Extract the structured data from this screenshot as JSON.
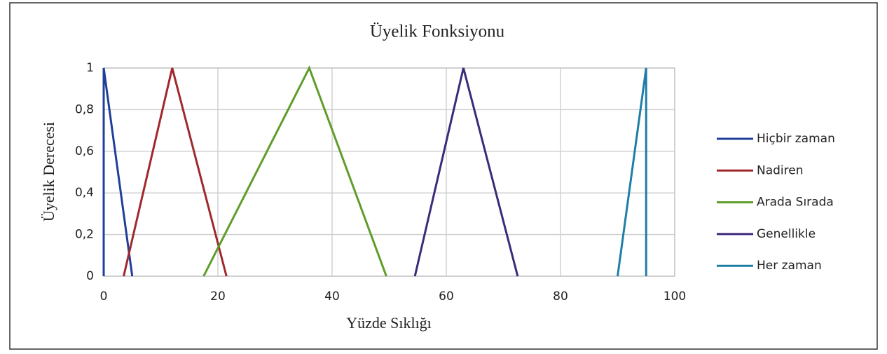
{
  "chart_data": {
    "type": "line",
    "title": "Üyelik Fonksiyonu",
    "xlabel": "Yüzde Sıklığı",
    "ylabel": "Üyelik Derecesi",
    "xlim": [
      0,
      100
    ],
    "xticks": [
      0,
      20,
      40,
      60,
      80,
      100
    ],
    "ylim": [
      0,
      1
    ],
    "yticks": [
      0,
      {
        "value": 0.2,
        "label": "0,2"
      },
      {
        "value": 0.4,
        "label": "0,4"
      },
      {
        "value": 0.6,
        "label": "0,6"
      },
      {
        "value": 0.8,
        "label": "0,8"
      },
      1
    ],
    "grid": true,
    "legend": "right",
    "series": [
      {
        "name": "Hiçbir zaman",
        "color": "#1f3f99",
        "x": [
          0,
          0,
          5
        ],
        "values": [
          0,
          1,
          0
        ]
      },
      {
        "name": "Nadiren",
        "color": "#a0282d",
        "x": [
          3.5,
          12,
          21.5
        ],
        "values": [
          0,
          1,
          0
        ]
      },
      {
        "name": "Arada Sırada",
        "color": "#5f9c2a",
        "x": [
          17.5,
          36,
          49.5
        ],
        "values": [
          0,
          1,
          0
        ]
      },
      {
        "name": "Genellikle",
        "color": "#3d2a7a",
        "x": [
          54.5,
          63,
          72.5
        ],
        "values": [
          0,
          1,
          0
        ]
      },
      {
        "name": "Her zaman",
        "color": "#1f7ea6",
        "x": [
          90,
          95,
          95
        ],
        "values": [
          0,
          1,
          0
        ]
      }
    ]
  }
}
